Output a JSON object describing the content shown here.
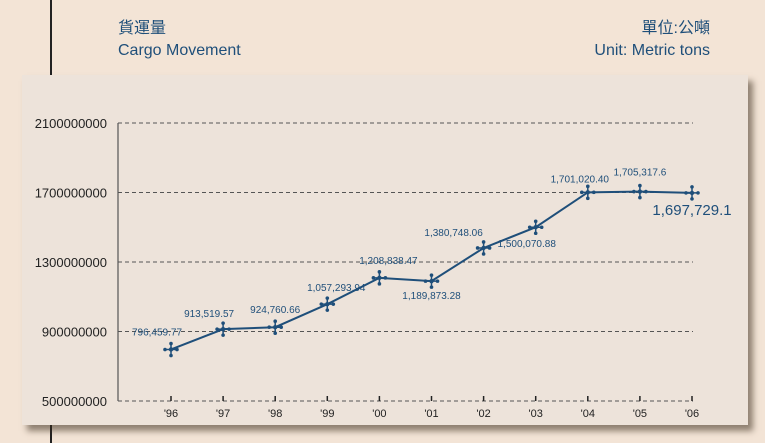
{
  "header": {
    "title_zh": "貨運量",
    "title_en": "Cargo Movement",
    "unit_zh": "單位:公噸",
    "unit_en": "Unit: Metric tons"
  },
  "chart_data": {
    "type": "line",
    "title": "Cargo Movement",
    "xlabel": "",
    "ylabel": "",
    "categories": [
      "'96",
      "'97",
      "'98",
      "'99",
      "'00",
      "'01",
      "'02",
      "'03",
      "'04",
      "'05",
      "'06"
    ],
    "series": [
      {
        "name": "Cargo Movement",
        "values": [
          796459770,
          913519570,
          924760660,
          1057293940,
          1208838470,
          1189873280,
          1380748060,
          1500070880,
          1701020400,
          1705317600,
          1697729100
        ],
        "labels": [
          "796,459.77",
          "913,519.57",
          "924,760.66",
          "1,057,293.94",
          "1,208,838.47",
          "1,189,873.28",
          "1,380,748.06",
          "1,500,070.88",
          "1,701,020.40",
          "1,705,317.6",
          "1,697,729.1"
        ],
        "color": "#1f4f7a"
      }
    ],
    "ylim": [
      500000000,
      2100000000
    ],
    "yticks": [
      "500000000",
      "900000000",
      "1300000000",
      "1700000000",
      "2100000000"
    ],
    "grid": true
  }
}
